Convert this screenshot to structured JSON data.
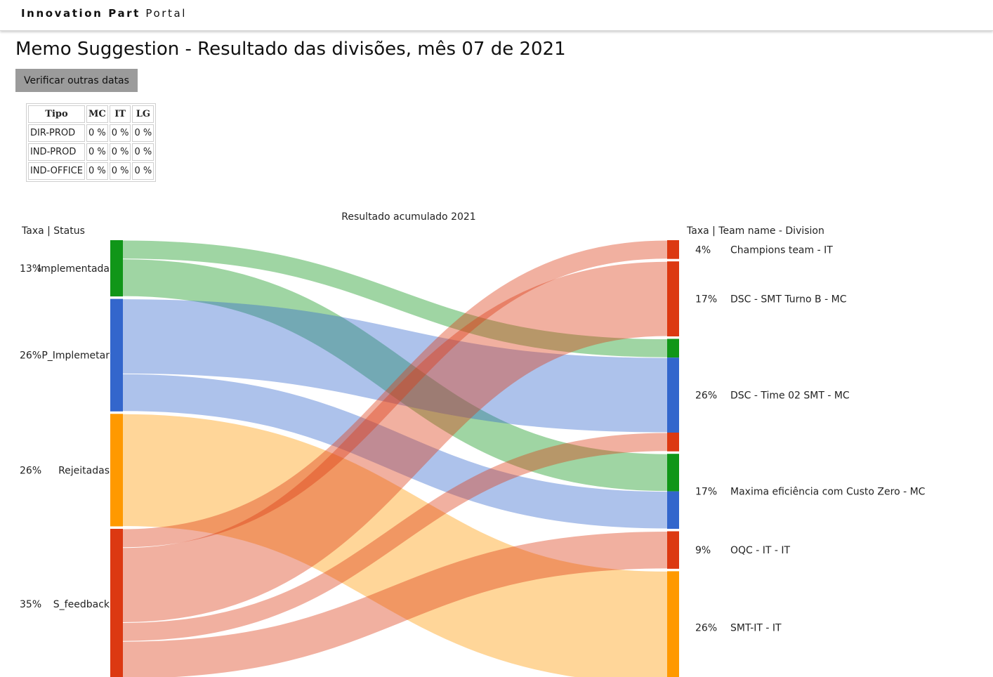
{
  "header": {
    "brand_bold": "Innovation Part",
    "brand_light": "Portal"
  },
  "page": {
    "title": "Memo Suggestion - Resultado das divisões, mês 07 de 2021",
    "button_label": "Verificar outras datas"
  },
  "table": {
    "headers": [
      "Tipo",
      "MC",
      "IT",
      "LG"
    ],
    "rows": [
      [
        "DIR-PROD",
        "0 %",
        "0 %",
        "0 %"
      ],
      [
        "IND-PROD",
        "0 %",
        "0 %",
        "0 %"
      ],
      [
        "IND-OFFICE",
        "0 %",
        "0 %",
        "0 %"
      ]
    ]
  },
  "chart_data": {
    "type": "sankey",
    "title": "Resultado acumulado 2021",
    "left_header": "Taxa | Status",
    "right_header": "Taxa | Team name - Division",
    "sources": [
      {
        "name": "Implementada",
        "rate": "13%",
        "color": "#109618"
      },
      {
        "name": "P_Implemetar",
        "rate": "26%",
        "color": "#3366cc"
      },
      {
        "name": "Rejeitadas",
        "rate": "26%",
        "color": "#ff9900"
      },
      {
        "name": "S_feedback",
        "rate": "35%",
        "color": "#dc3912"
      }
    ],
    "targets": [
      {
        "name": "Champions team - IT",
        "rate": "4%"
      },
      {
        "name": "DSC - SMT Turno B - MC",
        "rate": "17%"
      },
      {
        "name": "DSC - Time 02 SMT - MC",
        "rate": "26%"
      },
      {
        "name": "Maxima eficiência com Custo Zero - MC",
        "rate": "17%"
      },
      {
        "name": "OQC - IT - IT",
        "rate": "9%"
      },
      {
        "name": "SMT-IT - IT",
        "rate": "26%"
      }
    ],
    "flows": [
      {
        "source": "Implementada",
        "target": "DSC - Time 02 SMT - MC",
        "value": 1
      },
      {
        "source": "Implementada",
        "target": "Maxima eficiência com Custo Zero - MC",
        "value": 2
      },
      {
        "source": "P_Implemetar",
        "target": "DSC - Time 02 SMT - MC",
        "value": 4
      },
      {
        "source": "P_Implemetar",
        "target": "Maxima eficiência com Custo Zero - MC",
        "value": 2
      },
      {
        "source": "Rejeitadas",
        "target": "SMT-IT - IT",
        "value": 6
      },
      {
        "source": "S_feedback",
        "target": "Champions team - IT",
        "value": 1
      },
      {
        "source": "S_feedback",
        "target": "DSC - SMT Turno B - MC",
        "value": 4
      },
      {
        "source": "S_feedback",
        "target": "DSC - Time 02 SMT - MC",
        "value": 1
      },
      {
        "source": "S_feedback",
        "target": "OQC - IT - IT",
        "value": 2
      }
    ]
  }
}
